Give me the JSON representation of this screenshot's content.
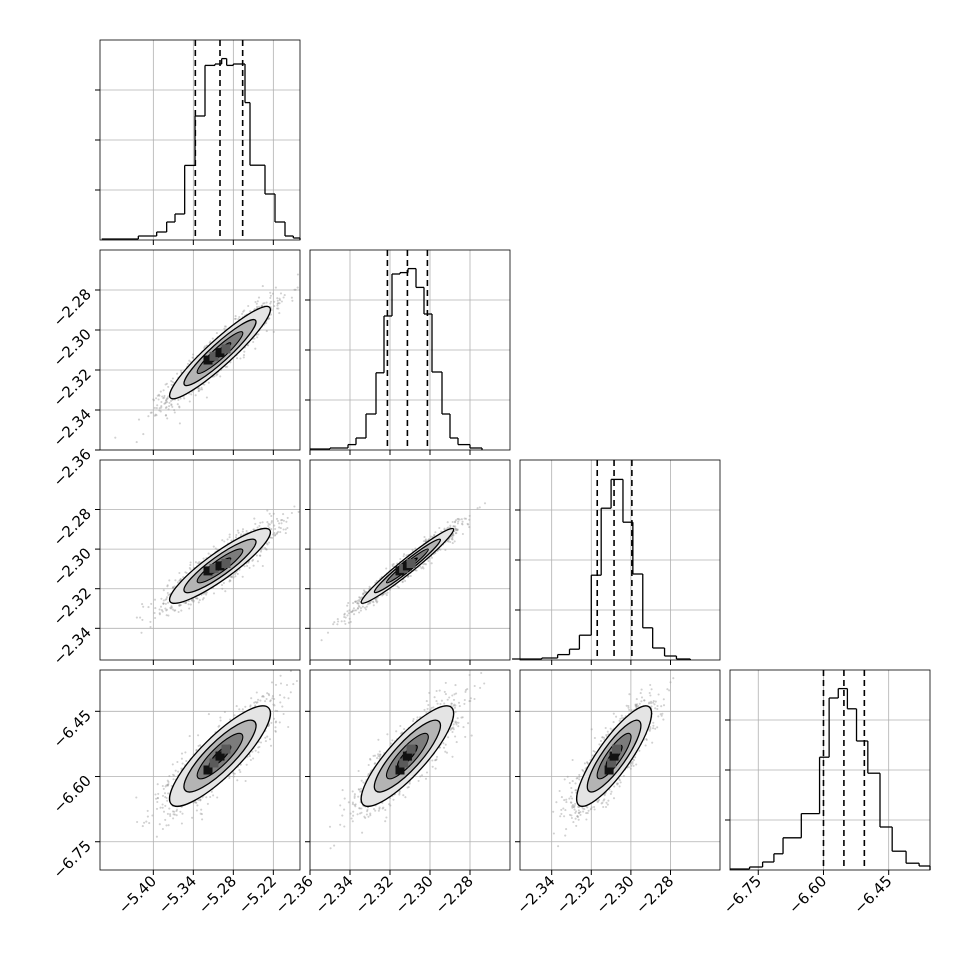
{
  "chart_data": {
    "type": "corner",
    "grid": true,
    "parameters": [
      {
        "name": "",
        "histogram": [
          {
            "x0": -5.4775,
            "x1": -5.45,
            "h": 0.005
          },
          {
            "x0": -5.45,
            "x1": -5.4225,
            "h": 0.005
          },
          {
            "x0": -5.4225,
            "x1": -5.395,
            "h": 0.02
          },
          {
            "x0": -5.395,
            "x1": -5.38,
            "h": 0.04
          },
          {
            "x0": -5.38,
            "x1": -5.3675,
            "h": 0.09
          },
          {
            "x0": -5.3675,
            "x1": -5.353,
            "h": 0.13
          },
          {
            "x0": -5.353,
            "x1": -5.3375,
            "h": 0.373
          },
          {
            "x0": -5.3375,
            "x1": -5.3225,
            "h": 0.62
          },
          {
            "x0": -5.3225,
            "x1": -5.3075,
            "h": 0.873
          },
          {
            "x0": -5.3075,
            "x1": -5.2975,
            "h": 0.88
          },
          {
            "x0": -5.2975,
            "x1": -5.29,
            "h": 0.907
          },
          {
            "x0": -5.29,
            "x1": -5.28,
            "h": 0.873
          },
          {
            "x0": -5.28,
            "x1": -5.2625,
            "h": 0.88
          },
          {
            "x0": -5.2625,
            "x1": -5.255,
            "h": 0.687
          },
          {
            "x0": -5.255,
            "x1": -5.2325,
            "h": 0.374
          },
          {
            "x0": -5.2325,
            "x1": -5.2175,
            "h": 0.23
          },
          {
            "x0": -5.2175,
            "x1": -5.2025,
            "h": 0.09
          },
          {
            "x0": -5.2025,
            "x1": -5.19,
            "h": 0.02
          },
          {
            "x0": -5.19,
            "x1": -5.18,
            "h": 0.01
          }
        ],
        "quantiles": [
          -5.337,
          -5.3,
          -5.266
        ]
      },
      {
        "name": "",
        "histogram": [
          {
            "x0": -2.36,
            "x1": -2.35,
            "h": 0.005
          },
          {
            "x0": -2.35,
            "x1": -2.341,
            "h": 0.01
          },
          {
            "x0": -2.341,
            "x1": -2.337,
            "h": 0.027
          },
          {
            "x0": -2.337,
            "x1": -2.332,
            "h": 0.06
          },
          {
            "x0": -2.332,
            "x1": -2.327,
            "h": 0.18
          },
          {
            "x0": -2.327,
            "x1": -2.323,
            "h": 0.386
          },
          {
            "x0": -2.323,
            "x1": -2.319,
            "h": 0.67
          },
          {
            "x0": -2.319,
            "x1": -2.315,
            "h": 0.88
          },
          {
            "x0": -2.315,
            "x1": -2.311,
            "h": 0.887
          },
          {
            "x0": -2.311,
            "x1": -2.307,
            "h": 0.907
          },
          {
            "x0": -2.307,
            "x1": -2.303,
            "h": 0.813
          },
          {
            "x0": -2.303,
            "x1": -2.299,
            "h": 0.68
          },
          {
            "x0": -2.299,
            "x1": -2.294,
            "h": 0.39
          },
          {
            "x0": -2.294,
            "x1": -2.29,
            "h": 0.18
          },
          {
            "x0": -2.29,
            "x1": -2.286,
            "h": 0.06
          },
          {
            "x0": -2.286,
            "x1": -2.28,
            "h": 0.027
          },
          {
            "x0": -2.28,
            "x1": -2.274,
            "h": 0.01
          }
        ],
        "quantiles": [
          -2.3213,
          -2.3113,
          -2.3013
        ]
      },
      {
        "name": "",
        "histogram": [
          {
            "x0": -2.36,
            "x1": -2.345,
            "h": 0.005
          },
          {
            "x0": -2.345,
            "x1": -2.337,
            "h": 0.01
          },
          {
            "x0": -2.337,
            "x1": -2.331,
            "h": 0.027
          },
          {
            "x0": -2.331,
            "x1": -2.326,
            "h": 0.054
          },
          {
            "x0": -2.326,
            "x1": -2.32,
            "h": 0.124
          },
          {
            "x0": -2.32,
            "x1": -2.315,
            "h": 0.424
          },
          {
            "x0": -2.315,
            "x1": -2.31,
            "h": 0.759
          },
          {
            "x0": -2.31,
            "x1": -2.304,
            "h": 0.903
          },
          {
            "x0": -2.304,
            "x1": -2.299,
            "h": 0.689
          },
          {
            "x0": -2.299,
            "x1": -2.294,
            "h": 0.43
          },
          {
            "x0": -2.294,
            "x1": -2.289,
            "h": 0.161
          },
          {
            "x0": -2.289,
            "x1": -2.283,
            "h": 0.06
          },
          {
            "x0": -2.283,
            "x1": -2.277,
            "h": 0.02
          },
          {
            "x0": -2.277,
            "x1": -2.27,
            "h": 0.005
          }
        ],
        "quantiles": [
          -2.317,
          -2.3085,
          -2.2995
        ]
      },
      {
        "name": "",
        "histogram": [
          {
            "x0": -6.815,
            "x1": -6.77,
            "h": 0.005
          },
          {
            "x0": -6.77,
            "x1": -6.74,
            "h": 0.015
          },
          {
            "x0": -6.74,
            "x1": -6.714,
            "h": 0.04
          },
          {
            "x0": -6.714,
            "x1": -6.693,
            "h": 0.081
          },
          {
            "x0": -6.693,
            "x1": -6.651,
            "h": 0.161
          },
          {
            "x0": -6.651,
            "x1": -6.609,
            "h": 0.282
          },
          {
            "x0": -6.609,
            "x1": -6.587,
            "h": 0.564
          },
          {
            "x0": -6.587,
            "x1": -6.566,
            "h": 0.86
          },
          {
            "x0": -6.566,
            "x1": -6.545,
            "h": 0.907
          },
          {
            "x0": -6.545,
            "x1": -6.524,
            "h": 0.806
          },
          {
            "x0": -6.524,
            "x1": -6.498,
            "h": 0.645
          },
          {
            "x0": -6.498,
            "x1": -6.47,
            "h": 0.484
          },
          {
            "x0": -6.47,
            "x1": -6.442,
            "h": 0.215
          },
          {
            "x0": -6.442,
            "x1": -6.41,
            "h": 0.094
          },
          {
            "x0": -6.41,
            "x1": -6.38,
            "h": 0.034
          },
          {
            "x0": -6.38,
            "x1": -6.355,
            "h": 0.02
          }
        ],
        "quantiles": [
          -6.6,
          -6.553,
          -6.506
        ]
      }
    ],
    "ranges": [
      [
        -5.48,
        -5.18
      ],
      [
        -2.36,
        -2.26
      ],
      [
        -2.356,
        -2.255
      ],
      [
        -6.815,
        -6.355
      ]
    ],
    "ticks": [
      [
        -5.4,
        -5.34,
        -5.28,
        -5.22
      ],
      [
        -2.36,
        -2.34,
        -2.32,
        -2.3,
        -2.28
      ],
      [
        -2.34,
        -2.32,
        -2.3,
        -2.28
      ],
      [
        -6.75,
        -6.6,
        -6.45
      ]
    ],
    "tick_labels": [
      [
        "−5.40",
        "−5.34",
        "−5.28",
        "−5.22"
      ],
      [
        "−2.36",
        "−2.34",
        "−2.32",
        "−2.30",
        "−2.28"
      ],
      [
        "−2.34",
        "−2.32",
        "−2.30",
        "−2.28"
      ],
      [
        "−6.75",
        "−6.60",
        "−6.45"
      ]
    ],
    "histogram_scale_ticks": [
      0.25,
      0.5,
      0.75
    ],
    "pairs": [
      {
        "x": 0,
        "y": 1,
        "center": [
          -5.3,
          -2.3113
        ],
        "sx": 0.036,
        "sy": 0.011,
        "rho": 0.93,
        "peak": [
          -5.318,
          -2.315
        ]
      },
      {
        "x": 0,
        "y": 2,
        "center": [
          -5.3,
          -2.3085
        ],
        "sx": 0.036,
        "sy": 0.009,
        "rho": 0.9,
        "peak": [
          -5.318,
          -2.311
        ]
      },
      {
        "x": 1,
        "y": 2,
        "center": [
          -2.3113,
          -2.3085
        ],
        "sx": 0.011,
        "sy": 0.009,
        "rho": 0.97,
        "peak": [
          -2.315,
          -2.311
        ]
      },
      {
        "x": 0,
        "y": 3,
        "center": [
          -5.3,
          -6.553
        ],
        "sx": 0.036,
        "sy": 0.055,
        "rho": 0.85,
        "peak": [
          -5.318,
          -6.585
        ]
      },
      {
        "x": 1,
        "y": 3,
        "center": [
          -2.3113,
          -6.553
        ],
        "sx": 0.011,
        "sy": 0.055,
        "rho": 0.85,
        "peak": [
          -2.315,
          -6.585
        ]
      },
      {
        "x": 2,
        "y": 3,
        "center": [
          -2.3085,
          -6.553
        ],
        "sx": 0.009,
        "sy": 0.055,
        "rho": 0.85,
        "peak": [
          -2.311,
          -6.585
        ]
      }
    ],
    "colors": {
      "ink": "#000000",
      "grid": "#b0b0b0",
      "points": "#9a9a9a",
      "contour_fills": [
        "#e4e4e4",
        "#b4b4b4",
        "#7c7c7c",
        "#404040"
      ]
    }
  }
}
